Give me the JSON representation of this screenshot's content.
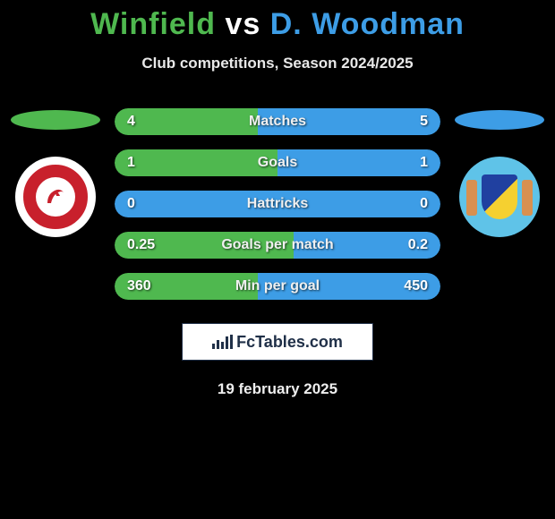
{
  "title": {
    "player_left": "Winfield",
    "vs": "vs",
    "player_right": "D. Woodman"
  },
  "subtitle": "Club competitions, Season 2024/2025",
  "colors": {
    "left": "#4fb84f",
    "right": "#3d9de6",
    "background": "#000000"
  },
  "stats": [
    {
      "label": "Matches",
      "left_val": "4",
      "right_val": "5",
      "left_pct": 44,
      "right_pct": 56
    },
    {
      "label": "Goals",
      "left_val": "1",
      "right_val": "1",
      "left_pct": 50,
      "right_pct": 50
    },
    {
      "label": "Hattricks",
      "left_val": "0",
      "right_val": "0",
      "left_pct": 0,
      "right_pct": 0,
      "neutral": "right"
    },
    {
      "label": "Goals per match",
      "left_val": "0.25",
      "right_val": "0.2",
      "left_pct": 55,
      "right_pct": 45
    },
    {
      "label": "Min per goal",
      "left_val": "360",
      "right_val": "450",
      "left_pct": 44,
      "right_pct": 56
    }
  ],
  "footer_brand": "FcTables.com",
  "footer_date": "19 february 2025"
}
